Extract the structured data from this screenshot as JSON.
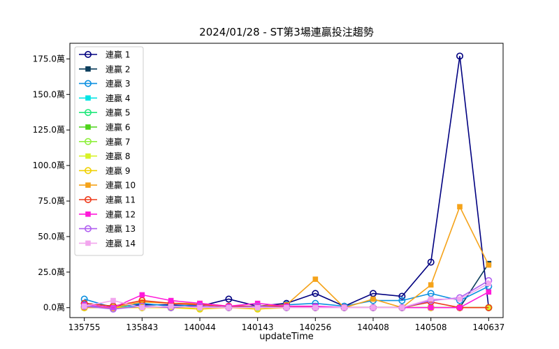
{
  "chart_data": {
    "type": "line",
    "title": "2024/01/28 - ST第3場連贏投注趨勢",
    "xlabel": "updateTime",
    "ylabel": "",
    "x_ticks": [
      "135755",
      "135843",
      "140044",
      "140143",
      "140256",
      "140408",
      "140508",
      "140637"
    ],
    "y_ticks": [
      "0.0萬",
      "25.0萬",
      "50.0萬",
      "75.0萬",
      "100.0萬",
      "125.0萬",
      "150.0萬",
      "175.0萬"
    ],
    "y_tick_values": [
      0,
      25,
      50,
      75,
      100,
      125,
      150,
      175
    ],
    "x_count": 15,
    "ylim": [
      -7,
      186
    ],
    "xlim": [
      -0.5,
      14.5
    ],
    "grid": false,
    "legend_position": "upper-left",
    "series": [
      {
        "name": "連贏 1",
        "color": "#000080",
        "marker": "circle",
        "values": [
          3,
          1,
          2,
          2,
          1,
          6,
          1,
          3,
          10,
          1,
          10,
          8,
          32,
          177,
          0
        ]
      },
      {
        "name": "連贏 2",
        "color": "#0b3d5c",
        "marker": "square",
        "values": [
          0,
          0,
          0,
          0,
          0,
          0,
          0,
          0,
          0,
          0,
          0,
          0,
          0,
          0,
          31
        ]
      },
      {
        "name": "連贏 3",
        "color": "#0a8fe0",
        "marker": "circle",
        "values": [
          6,
          0,
          3,
          1,
          2,
          1,
          1,
          2,
          3,
          1,
          5,
          5,
          10,
          5,
          15
        ]
      },
      {
        "name": "連贏 4",
        "color": "#00e5e5",
        "marker": "square",
        "values": [
          1,
          0,
          1,
          0,
          0,
          0,
          1,
          0,
          0,
          0,
          0,
          0,
          0,
          0,
          0
        ]
      },
      {
        "name": "連贏 5",
        "color": "#1ee87a",
        "marker": "circle",
        "values": [
          0,
          0,
          0,
          0,
          0,
          0,
          0,
          0,
          0,
          0,
          0,
          0,
          0,
          0,
          0
        ]
      },
      {
        "name": "連贏 6",
        "color": "#4dd41a",
        "marker": "square",
        "values": [
          0,
          0,
          0,
          0,
          0,
          0,
          0,
          0,
          0,
          0,
          0,
          0,
          0,
          0,
          0
        ]
      },
      {
        "name": "連贏 7",
        "color": "#8ef03c",
        "marker": "circle",
        "values": [
          0,
          0,
          0,
          0,
          0,
          0,
          0,
          0,
          0,
          0,
          0,
          0,
          0,
          0,
          0
        ]
      },
      {
        "name": "連贏 8",
        "color": "#d8f226",
        "marker": "square",
        "values": [
          0,
          0,
          0,
          0,
          0,
          0,
          0,
          0,
          0,
          0,
          0,
          0,
          0,
          0,
          0
        ]
      },
      {
        "name": "連贏 9",
        "color": "#f0d000",
        "marker": "circle",
        "values": [
          0,
          0,
          0,
          0,
          -1,
          0,
          -1,
          0,
          0,
          0,
          0,
          0,
          0,
          0,
          0
        ]
      },
      {
        "name": "連贏 10",
        "color": "#f5a31a",
        "marker": "square",
        "values": [
          0,
          0,
          4,
          3,
          3,
          1,
          1,
          2,
          20,
          0,
          6,
          0,
          16,
          71,
          30
        ]
      },
      {
        "name": "連贏 11",
        "color": "#ee3a1a",
        "marker": "circle",
        "values": [
          3,
          1,
          5,
          3,
          2,
          1,
          1,
          1,
          0,
          0,
          0,
          0,
          4,
          0,
          0
        ]
      },
      {
        "name": "連贏 12",
        "color": "#ff1ad9",
        "marker": "square",
        "values": [
          2,
          0,
          9,
          5,
          3,
          1,
          3,
          1,
          1,
          0,
          0,
          0,
          0,
          0,
          11
        ]
      },
      {
        "name": "連贏 13",
        "color": "#b05ef0",
        "marker": "circle",
        "values": [
          1,
          -1,
          1,
          0,
          1,
          0,
          1,
          0,
          0,
          0,
          0,
          0,
          5,
          7,
          19
        ]
      },
      {
        "name": "連贏 14",
        "color": "#f2a6ee",
        "marker": "square",
        "values": [
          1,
          5,
          0,
          1,
          0,
          0,
          0,
          0,
          0,
          0,
          0,
          0,
          6,
          6,
          17
        ]
      }
    ]
  }
}
